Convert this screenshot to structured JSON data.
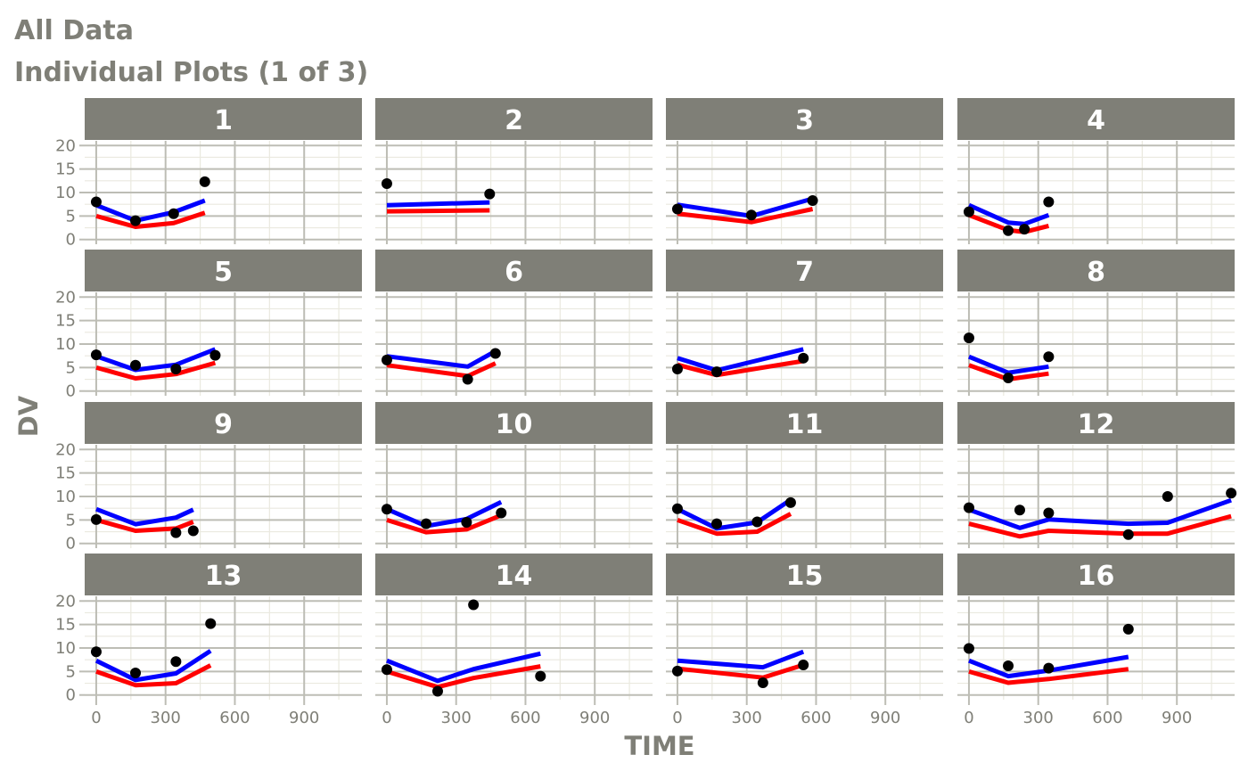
{
  "chart_data": {
    "type": "line",
    "title": "All Data",
    "subtitle": "Individual Plots (1 of 3)",
    "xlabel": "TIME",
    "ylabel": "DV",
    "xlim": [
      -50,
      1150
    ],
    "ylim": [
      -1,
      21
    ],
    "x_ticks": [
      0,
      300,
      600,
      900
    ],
    "y_ticks": [
      0,
      5,
      10,
      15,
      20
    ],
    "grid": true,
    "layout": "facet grid 4 columns x 4 rows",
    "colors": {
      "observed_points": "#000000",
      "blue_line": "#0000ff",
      "red_line": "#ff0000",
      "strip_background": "#7f7f77",
      "strip_text": "#ffffff",
      "axis_text": "#7f7f77",
      "grid_major": "#bdbdb5",
      "grid_minor": "#eae9df"
    },
    "panels": [
      {
        "id": "1",
        "points": [
          [
            0,
            8.0
          ],
          [
            170,
            4.0
          ],
          [
            335,
            5.5
          ],
          [
            470,
            12.3
          ]
        ],
        "blue": [
          [
            0,
            7.3
          ],
          [
            170,
            4.0
          ],
          [
            335,
            5.8
          ],
          [
            470,
            8.3
          ]
        ],
        "red": [
          [
            0,
            5.0
          ],
          [
            170,
            2.7
          ],
          [
            335,
            3.5
          ],
          [
            470,
            5.7
          ]
        ]
      },
      {
        "id": "2",
        "points": [
          [
            0,
            11.9
          ],
          [
            445,
            9.7
          ]
        ],
        "blue": [
          [
            0,
            7.3
          ],
          [
            445,
            7.9
          ]
        ],
        "red": [
          [
            0,
            6.0
          ],
          [
            445,
            6.2
          ]
        ]
      },
      {
        "id": "3",
        "points": [
          [
            0,
            6.5
          ],
          [
            320,
            5.2
          ],
          [
            585,
            8.3
          ]
        ],
        "blue": [
          [
            0,
            7.4
          ],
          [
            320,
            5.0
          ],
          [
            585,
            8.7
          ]
        ],
        "red": [
          [
            0,
            5.5
          ],
          [
            320,
            3.7
          ],
          [
            585,
            6.5
          ]
        ]
      },
      {
        "id": "4",
        "points": [
          [
            0,
            5.9
          ],
          [
            170,
            1.9
          ],
          [
            240,
            2.2
          ],
          [
            345,
            8.0
          ]
        ],
        "blue": [
          [
            0,
            7.3
          ],
          [
            170,
            3.6
          ],
          [
            240,
            3.3
          ],
          [
            345,
            5.2
          ]
        ],
        "red": [
          [
            0,
            5.2
          ],
          [
            170,
            2.0
          ],
          [
            240,
            1.6
          ],
          [
            345,
            2.9
          ]
        ]
      },
      {
        "id": "5",
        "points": [
          [
            0,
            7.7
          ],
          [
            170,
            5.5
          ],
          [
            345,
            4.7
          ],
          [
            515,
            7.6
          ]
        ],
        "blue": [
          [
            0,
            7.4
          ],
          [
            170,
            4.5
          ],
          [
            345,
            5.6
          ],
          [
            515,
            8.9
          ]
        ],
        "red": [
          [
            0,
            5.0
          ],
          [
            170,
            2.7
          ],
          [
            345,
            3.6
          ],
          [
            515,
            6.0
          ]
        ]
      },
      {
        "id": "6",
        "points": [
          [
            0,
            6.6
          ],
          [
            350,
            2.5
          ],
          [
            470,
            8.0
          ]
        ],
        "blue": [
          [
            0,
            7.4
          ],
          [
            350,
            5.2
          ],
          [
            470,
            8.5
          ]
        ],
        "red": [
          [
            0,
            5.5
          ],
          [
            350,
            3.2
          ],
          [
            470,
            5.9
          ]
        ]
      },
      {
        "id": "7",
        "points": [
          [
            0,
            4.7
          ],
          [
            170,
            4.1
          ],
          [
            545,
            7.0
          ]
        ],
        "blue": [
          [
            0,
            7.0
          ],
          [
            170,
            4.4
          ],
          [
            545,
            8.9
          ]
        ],
        "red": [
          [
            0,
            5.6
          ],
          [
            170,
            3.4
          ],
          [
            545,
            6.4
          ]
        ]
      },
      {
        "id": "8",
        "points": [
          [
            0,
            11.3
          ],
          [
            170,
            2.8
          ],
          [
            345,
            7.3
          ]
        ],
        "blue": [
          [
            0,
            7.3
          ],
          [
            170,
            3.9
          ],
          [
            345,
            5.2
          ]
        ],
        "red": [
          [
            0,
            5.5
          ],
          [
            170,
            2.5
          ],
          [
            345,
            3.7
          ]
        ]
      },
      {
        "id": "9",
        "points": [
          [
            0,
            5.1
          ],
          [
            345,
            2.3
          ],
          [
            420,
            2.7
          ]
        ],
        "blue": [
          [
            0,
            7.3
          ],
          [
            170,
            4.1
          ],
          [
            345,
            5.5
          ],
          [
            420,
            7.2
          ]
        ],
        "red": [
          [
            0,
            5.0
          ],
          [
            170,
            2.7
          ],
          [
            345,
            3.2
          ],
          [
            420,
            4.6
          ]
        ]
      },
      {
        "id": "10",
        "points": [
          [
            0,
            7.3
          ],
          [
            170,
            4.2
          ],
          [
            345,
            4.5
          ],
          [
            495,
            6.5
          ]
        ],
        "blue": [
          [
            0,
            7.3
          ],
          [
            170,
            3.7
          ],
          [
            345,
            5.2
          ],
          [
            495,
            8.8
          ]
        ],
        "red": [
          [
            0,
            5.0
          ],
          [
            170,
            2.4
          ],
          [
            345,
            3.0
          ],
          [
            495,
            6.0
          ]
        ]
      },
      {
        "id": "11",
        "points": [
          [
            0,
            7.4
          ],
          [
            170,
            4.2
          ],
          [
            345,
            4.6
          ],
          [
            490,
            8.7
          ]
        ],
        "blue": [
          [
            0,
            7.3
          ],
          [
            170,
            3.2
          ],
          [
            345,
            4.5
          ],
          [
            490,
            9.3
          ]
        ],
        "red": [
          [
            0,
            5.0
          ],
          [
            170,
            2.1
          ],
          [
            345,
            2.5
          ],
          [
            490,
            6.3
          ]
        ]
      },
      {
        "id": "12",
        "points": [
          [
            0,
            7.6
          ],
          [
            220,
            7.1
          ],
          [
            345,
            6.5
          ],
          [
            690,
            1.9
          ],
          [
            860,
            10.0
          ],
          [
            1135,
            10.7
          ]
        ],
        "blue": [
          [
            0,
            7.2
          ],
          [
            220,
            3.3
          ],
          [
            345,
            5.1
          ],
          [
            690,
            4.2
          ],
          [
            860,
            4.4
          ],
          [
            1135,
            9.2
          ]
        ],
        "red": [
          [
            0,
            4.2
          ],
          [
            220,
            1.5
          ],
          [
            345,
            2.7
          ],
          [
            690,
            2.1
          ],
          [
            860,
            2.1
          ],
          [
            1135,
            5.8
          ]
        ]
      },
      {
        "id": "13",
        "points": [
          [
            0,
            9.2
          ],
          [
            170,
            4.7
          ],
          [
            345,
            7.1
          ],
          [
            495,
            15.2
          ]
        ],
        "blue": [
          [
            0,
            7.3
          ],
          [
            170,
            3.2
          ],
          [
            345,
            4.6
          ],
          [
            495,
            9.4
          ]
        ],
        "red": [
          [
            0,
            5.0
          ],
          [
            170,
            2.1
          ],
          [
            345,
            2.5
          ],
          [
            495,
            6.3
          ]
        ]
      },
      {
        "id": "14",
        "points": [
          [
            0,
            5.4
          ],
          [
            220,
            0.8
          ],
          [
            375,
            19.2
          ],
          [
            665,
            4.0
          ]
        ],
        "blue": [
          [
            0,
            7.3
          ],
          [
            220,
            3.0
          ],
          [
            375,
            5.5
          ],
          [
            665,
            8.8
          ]
        ],
        "red": [
          [
            0,
            5.0
          ],
          [
            220,
            1.7
          ],
          [
            375,
            3.6
          ],
          [
            665,
            6.1
          ]
        ]
      },
      {
        "id": "15",
        "points": [
          [
            0,
            5.1
          ],
          [
            370,
            2.6
          ],
          [
            545,
            6.4
          ]
        ],
        "blue": [
          [
            0,
            7.3
          ],
          [
            370,
            5.9
          ],
          [
            545,
            9.2
          ]
        ],
        "red": [
          [
            0,
            5.6
          ],
          [
            370,
            3.7
          ],
          [
            545,
            6.4
          ]
        ]
      },
      {
        "id": "16",
        "points": [
          [
            0,
            9.9
          ],
          [
            170,
            6.2
          ],
          [
            345,
            5.7
          ],
          [
            690,
            14.0
          ]
        ],
        "blue": [
          [
            0,
            7.3
          ],
          [
            170,
            4.0
          ],
          [
            345,
            5.2
          ],
          [
            690,
            8.1
          ]
        ],
        "red": [
          [
            0,
            5.0
          ],
          [
            170,
            2.6
          ],
          [
            345,
            3.4
          ],
          [
            690,
            5.5
          ]
        ]
      }
    ]
  }
}
